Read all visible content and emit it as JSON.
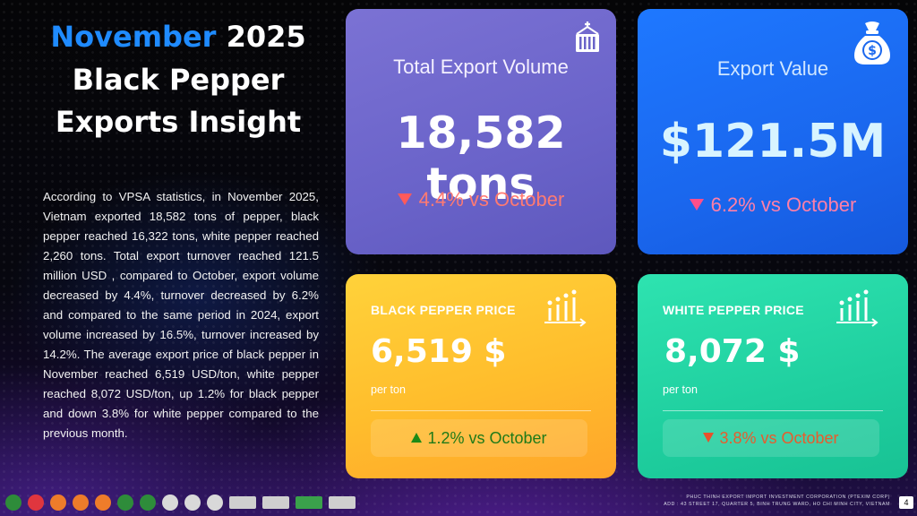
{
  "header": {
    "month": "November",
    "year": "2025",
    "line2": "Black Pepper",
    "line3": "Exports Insight"
  },
  "description": "According to VPSA statistics, in November 2025, Vietnam exported 18,582 tons of pepper, black pepper reached 16,322 tons, white pepper reached 2,260 tons. Total export turnover reached 121.5 million USD , compared to October, export volume decreased by 4.4%, turnover decreased by 6.2% and compared to the same period in 2024, export volume increased by 16.5%, turnover increased by 14.2%. The average export price of black pepper in November reached 6,519 USD/ton, white pepper reached 8,072 USD/ton, up 1.2% for black pepper and down 3.8% for white pepper compared to the previous month.",
  "cards": {
    "volume": {
      "title": "Total Export Volume",
      "value": "18,582 tons",
      "change": "4.4% vs October",
      "direction": "down",
      "icon": "container-icon",
      "color": "#6a63c9"
    },
    "value": {
      "title": "Export Value",
      "value": "$121.5M",
      "change": "6.2% vs October",
      "direction": "down",
      "icon": "money-bag-icon",
      "color": "#1a67ee"
    },
    "black_price": {
      "label": "BLACK PEPPER PRICE",
      "value": "6,519 $",
      "unit": "per ton",
      "change": "1.2% vs October",
      "direction": "up",
      "icon": "bar-chart-icon",
      "color": "#ffbd2c"
    },
    "white_price": {
      "label": "WHITE PEPPER PRICE",
      "value": "8,072 $",
      "unit": "per ton",
      "change": "3.8% vs October",
      "direction": "down",
      "icon": "bar-chart-icon",
      "color": "#1fcf9f"
    }
  },
  "footer": {
    "company": "PHUC THINH EXPORT IMPORT INVESTMENT CORPORATION (PTEXIM CORP)",
    "address": "ADD : 43 STREET 17, QUARTER 5, BINH TRUNG WARD, HO CHI MINH CITY, VIETNAM",
    "page_number": "4"
  },
  "colors": {
    "accent_blue": "#1f8bff",
    "down_red": "#ff5a5a",
    "up_green": "#1c8a16"
  }
}
